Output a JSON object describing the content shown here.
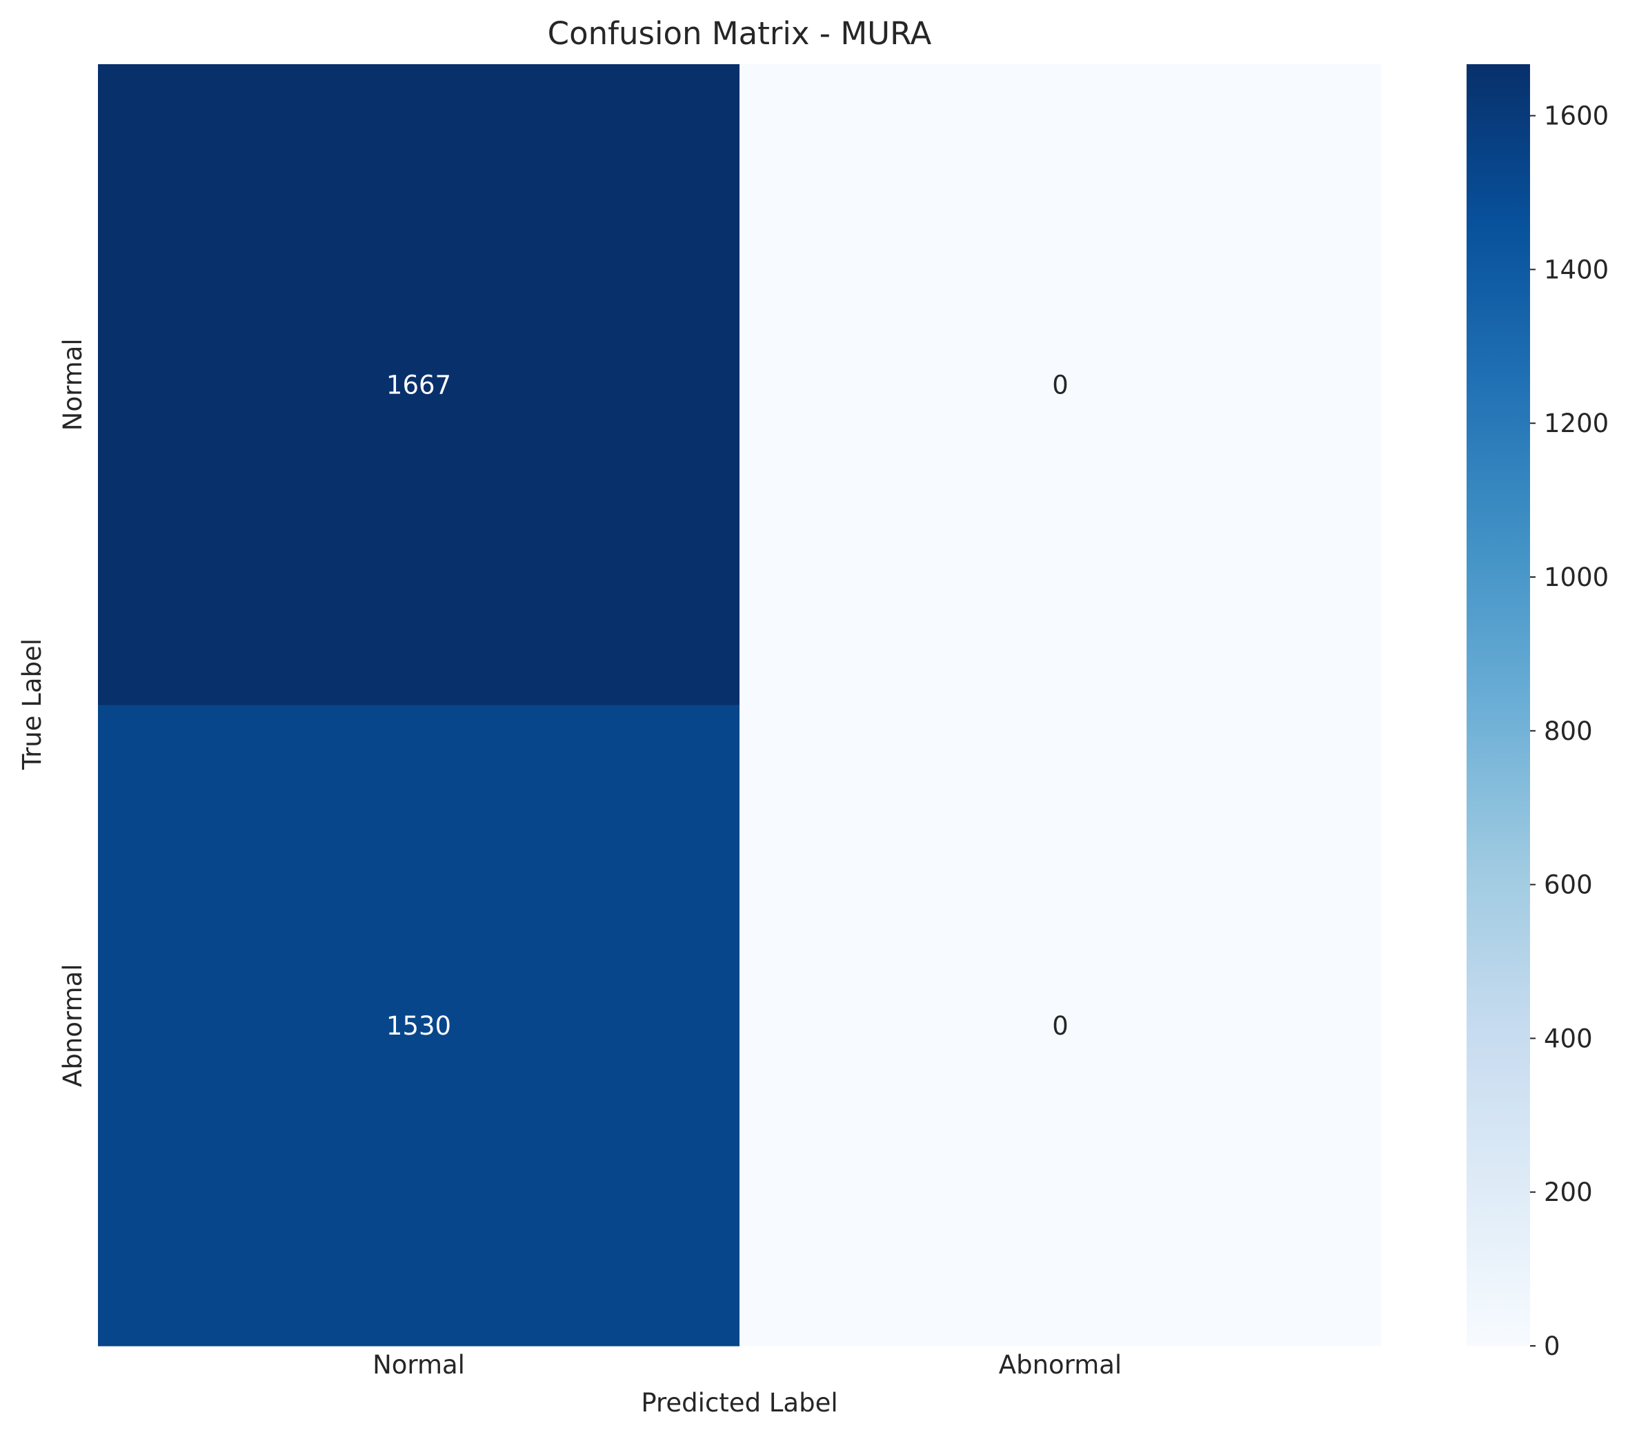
{
  "chart_data": {
    "type": "heatmap",
    "title": "Confusion Matrix - MURA",
    "xlabel": "Predicted Label",
    "ylabel": "True Label",
    "x_categories": [
      "Normal",
      "Abnormal"
    ],
    "y_categories": [
      "Normal",
      "Abnormal"
    ],
    "values": [
      [
        1667,
        0
      ],
      [
        1530,
        0
      ]
    ],
    "value_labels": [
      [
        "1667",
        "0"
      ],
      [
        "1530",
        "0"
      ]
    ],
    "colormap": "Blues",
    "color_range": [
      0,
      1667
    ],
    "colorbar_ticks": [
      0,
      200,
      400,
      600,
      800,
      1000,
      1200,
      1400,
      1600
    ],
    "colorbar_tick_labels": [
      "0",
      "200",
      "400",
      "600",
      "800",
      "1000",
      "1200",
      "1400",
      "1600"
    ],
    "grid": false,
    "colorbar": "right"
  }
}
